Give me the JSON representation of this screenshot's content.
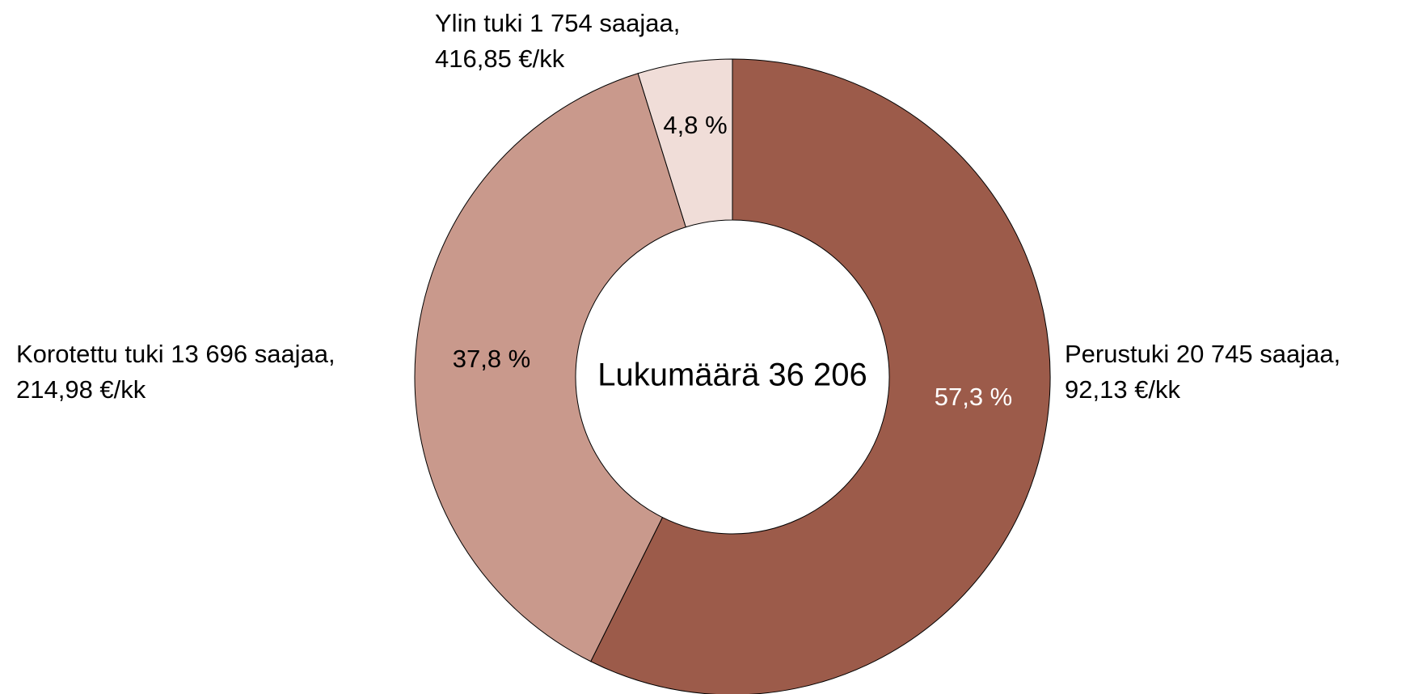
{
  "chart_data": {
    "type": "donut",
    "center_label": "Lukumäärä 36 206",
    "categories": [
      [
        "Perustuki 20 745 saajaa,",
        "92,13 €/kk"
      ],
      [
        "Korotettu tuki 13 696 saajaa,",
        "214,98 €/kk"
      ],
      [
        "Ylin tuki 1 754 saajaa,",
        "416,85 €/kk"
      ]
    ],
    "values": [
      57.3,
      37.8,
      4.8
    ],
    "value_labels": [
      "57,3 %",
      "37,8 %",
      "4,8 %"
    ],
    "colors": [
      "#9c5b4a",
      "#c9998c",
      "#f0ddd8"
    ],
    "value_label_colors": [
      "#ffffff",
      "#000000",
      "#000000"
    ]
  }
}
